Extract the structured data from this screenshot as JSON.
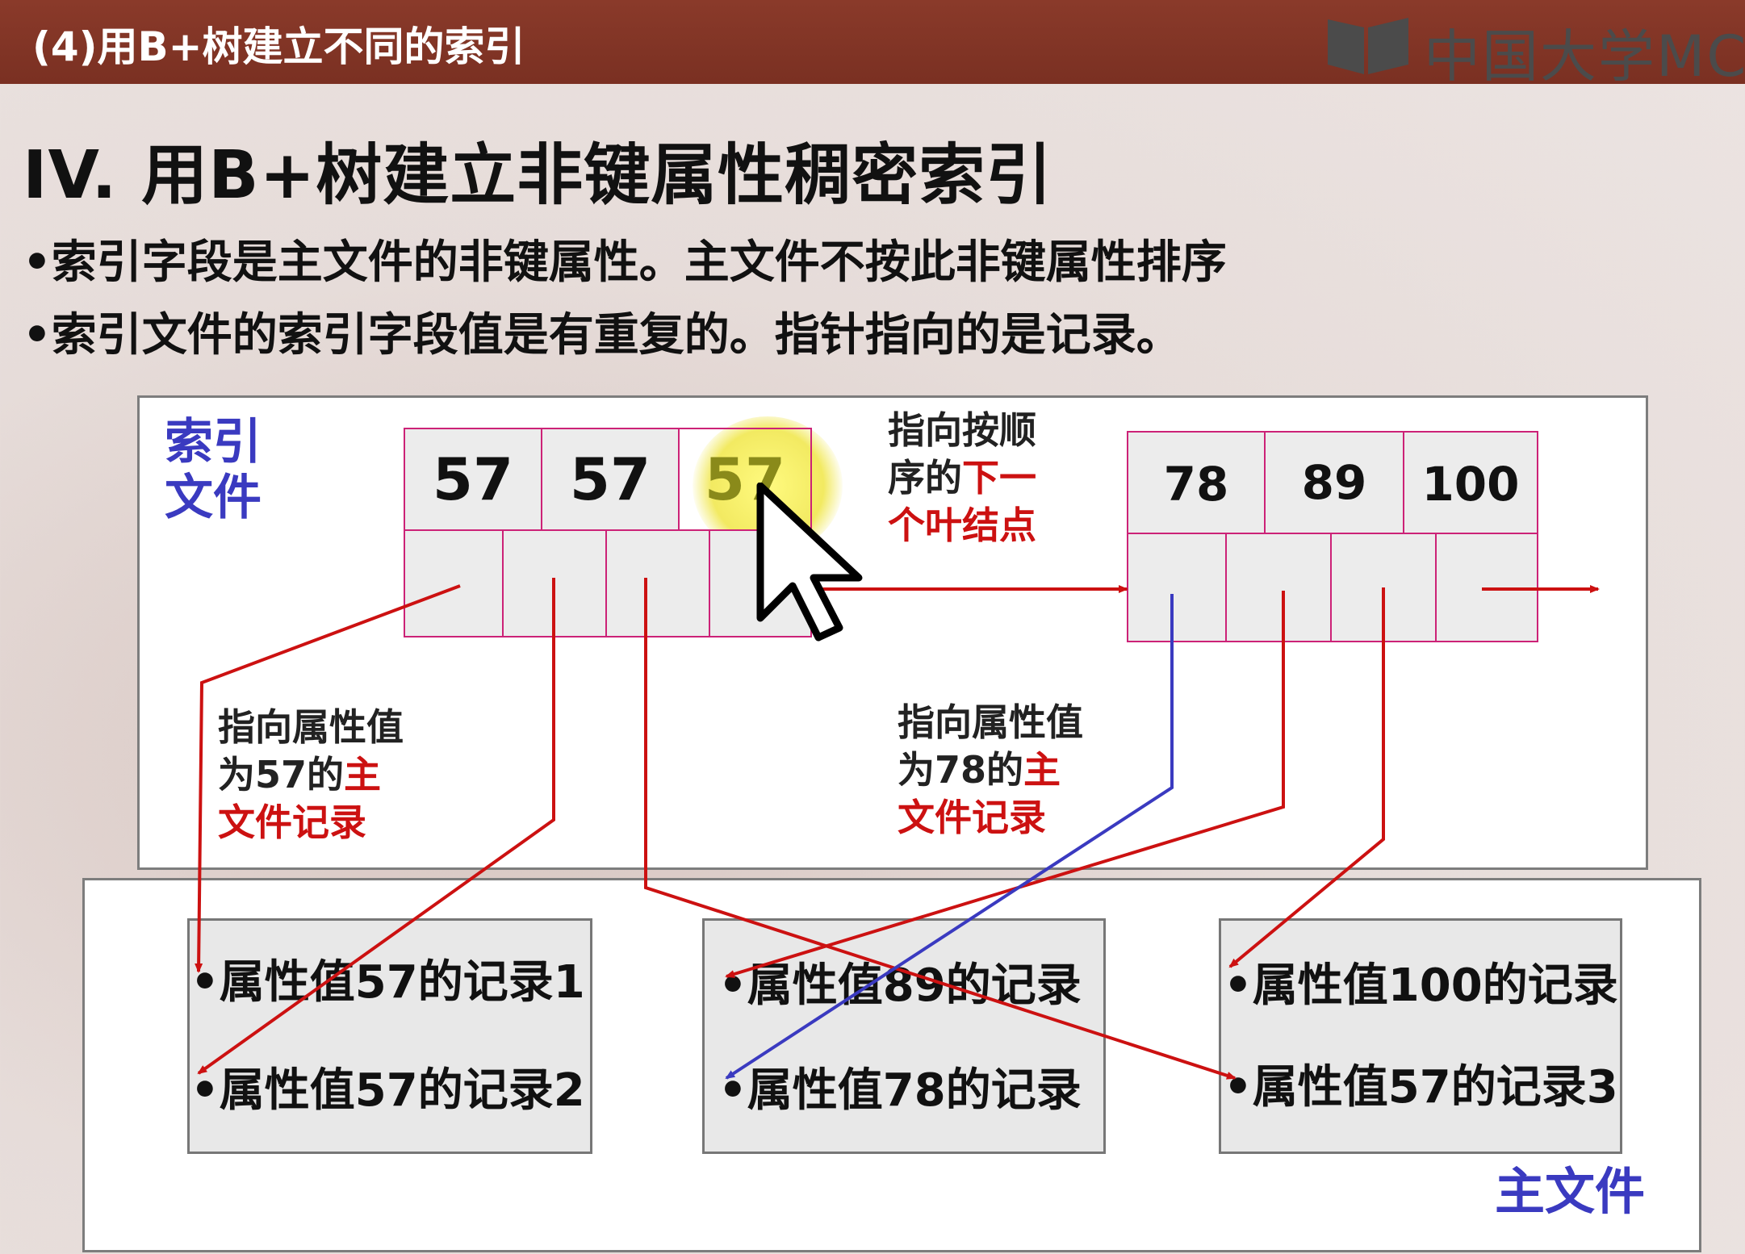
{
  "header": {
    "title": "(4)用B+树建立不同的索引",
    "logo_text": "中国大学MC"
  },
  "slide": {
    "heading": "IV. 用B+树建立非键属性稠密索引",
    "bullets": [
      "•索引字段是主文件的非键属性。主文件不按此非键属性排序",
      "•索引文件的索引字段值是有重复的。指针指向的是记录。"
    ]
  },
  "diagram": {
    "index_file_label": [
      "索引",
      "文件"
    ],
    "main_file_label": "主文件",
    "leaf1_keys": [
      "57",
      "57",
      "57"
    ],
    "leaf2_keys": [
      "78",
      "89",
      "100"
    ],
    "note_next_leaf": {
      "dark": "指向按顺",
      "dark2": "序的",
      "red2": "下一",
      "red3": "个叶结点"
    },
    "note_57": {
      "line1": "指向属性值",
      "line2_dark": "为57的",
      "line2_red": "主",
      "line3": "文件记录"
    },
    "note_78": {
      "line1": "指向属性值",
      "line2_dark": "为78的",
      "line2_red": "主",
      "line3": "文件记录"
    },
    "record_groups": [
      {
        "records": [
          "•属性值57的记录1",
          "•属性值57的记录2"
        ]
      },
      {
        "records": [
          "•属性值89的记录",
          "•属性值78的记录"
        ]
      },
      {
        "records": [
          "•属性值100的记录",
          "•属性值57的记录3"
        ]
      }
    ]
  },
  "colors": {
    "header": "#7a3022",
    "pointer_red": "#cc1111",
    "pointer_blue": "#3a3ac0",
    "node_border": "#cc2277"
  }
}
